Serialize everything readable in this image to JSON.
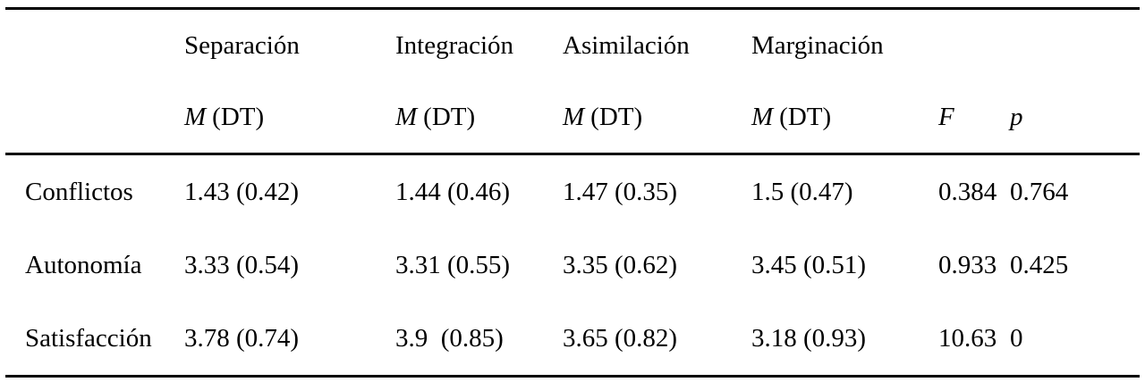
{
  "table": {
    "group_headers": [
      "Separación",
      "Integración",
      "Asimilación",
      "Marginación"
    ],
    "m_label": "M",
    "dt_label": "(DT)",
    "f_label": "F",
    "p_label": "p",
    "rows": [
      {
        "label": "Conflictos",
        "cells": [
          "1.43 (0.42)",
          "1.44 (0.46)",
          "1.47 (0.35)",
          "1.5 (0.47)",
          "0.384",
          "0.764"
        ]
      },
      {
        "label": "Autonomía",
        "cells": [
          "3.33 (0.54)",
          "3.31 (0.55)",
          "3.35 (0.62)",
          "3.45 (0.51)",
          "0.933",
          "0.425"
        ]
      },
      {
        "label": "Satisfacción",
        "cells": [
          "3.78 (0.74)",
          "3.9  (0.85)",
          "3.65 (0.82)",
          "3.18 (0.93)",
          "10.63",
          "0"
        ]
      }
    ]
  }
}
